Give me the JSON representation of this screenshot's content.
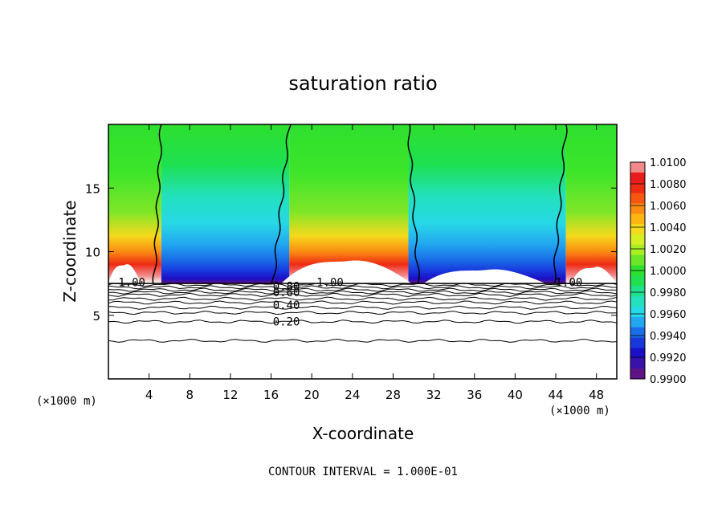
{
  "chart_data": {
    "type": "heatmap",
    "title": "saturation ratio",
    "xlabel": "X-coordinate",
    "ylabel": "Z-coordinate",
    "x_unit": "(×1000 m)",
    "y_unit": "(×1000 m)",
    "xlim": [
      0,
      50
    ],
    "ylim": [
      0,
      20
    ],
    "x_ticks": [
      4,
      8,
      12,
      16,
      20,
      24,
      28,
      32,
      36,
      40,
      44,
      48
    ],
    "y_ticks": [
      5,
      10,
      15
    ],
    "footer": "CONTOUR INTERVAL = 1.000E-01",
    "colorbar": {
      "min": 0.99,
      "max": 1.01,
      "labels": [
        "1.0100",
        "1.0080",
        "1.0060",
        "1.0040",
        "1.0020",
        "1.0000",
        "0.9980",
        "0.9960",
        "0.9940",
        "0.9920",
        "0.9900"
      ],
      "colors": [
        "#f08a8a",
        "#e81c1c",
        "#ee2b14",
        "#f7560f",
        "#fb8b12",
        "#fcb614",
        "#f4d91c",
        "#d6ee24",
        "#a8ee24",
        "#6ce629",
        "#2ee02e",
        "#1ee050",
        "#1fe08c",
        "#22e1bc",
        "#27d8e6",
        "#22a8f0",
        "#1a6ee8",
        "#1838dc",
        "#1c10c6",
        "#3a12a8",
        "#5e1486"
      ]
    },
    "contour_labels": [
      {
        "text": "1.00",
        "x": 2.3,
        "y": 7.6
      },
      {
        "text": "0.80",
        "x": 17.5,
        "y": 7.3
      },
      {
        "text": "0.60",
        "x": 17.5,
        "y": 6.8
      },
      {
        "text": "1.00",
        "x": 21.8,
        "y": 7.6
      },
      {
        "text": "0.40",
        "x": 17.5,
        "y": 5.8
      },
      {
        "text": "0.20",
        "x": 17.5,
        "y": 4.5
      },
      {
        "text": "1.00",
        "x": 45.3,
        "y": 7.6
      }
    ],
    "cloud_base_km": 7.5,
    "contour_levels_below": [
      7.4,
      7.2,
      7.0,
      6.8,
      6.6,
      6.3,
      6.0,
      5.6,
      5.2,
      4.5,
      3.0
    ],
    "updraft_boundaries": [
      {
        "x_top": 5.2,
        "x_bottom": 4.5
      },
      {
        "x_top": 17.8,
        "x_bottom": 16.2
      },
      {
        "x_top": 29.5,
        "x_bottom": 30.5
      },
      {
        "x_top": 45.0,
        "x_bottom": 43.8
      }
    ],
    "white_regions": [
      {
        "x_start": 0,
        "x_end": 3.2,
        "peak": 9.2
      },
      {
        "x_start": 17.0,
        "x_end": 29.8,
        "peak": 9.5
      },
      {
        "x_start": 31.0,
        "x_end": 43.0,
        "peak": 8.8
      },
      {
        "x_start": 45.5,
        "x_end": 50,
        "peak": 9.0
      }
    ]
  }
}
